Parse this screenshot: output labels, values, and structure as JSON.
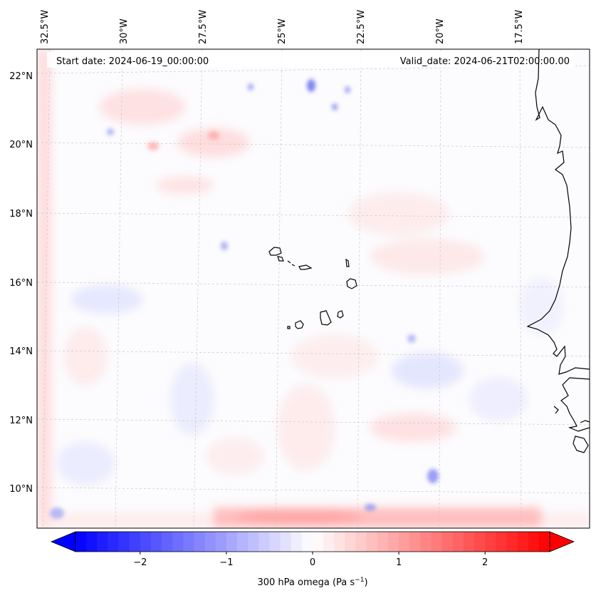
{
  "map": {
    "start_date": "Start date: 2024-06-19_00:00:00",
    "valid_date": "Valid_date: 2024-06-21T02:00:00.00",
    "lon_labels": [
      "32.5°W",
      "30°W",
      "27.5°W",
      "25°W",
      "22.5°W",
      "20°W",
      "17.5°W"
    ],
    "lat_labels": [
      "22°N",
      "20°N",
      "18°N",
      "16°N",
      "14°N",
      "12°N",
      "10°N"
    ],
    "colors": {
      "negative": "#0000ff",
      "neutral": "#ffffff",
      "positive": "#ff0000",
      "coastline": "#000000",
      "grid": "#b0b0b0"
    }
  },
  "colorbar": {
    "label": "300 hPa omega (Pa s",
    "label_sup": "−1",
    "label_close": ")",
    "ticks": [
      "−2",
      "−1",
      "0",
      "1",
      "2"
    ],
    "range": [
      -2.75,
      2.75
    ]
  }
}
